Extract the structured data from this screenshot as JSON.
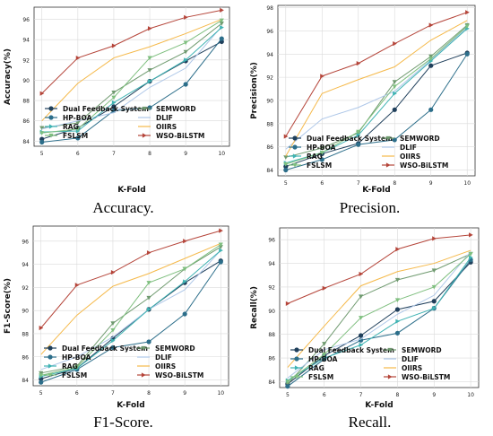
{
  "figure": {
    "captions": [
      "Accuracy.",
      "Precision.",
      "F1-Score.",
      "Recall."
    ]
  },
  "series_styles": [
    {
      "name": "Dual Feedback System",
      "color": "#1f3f5b",
      "marker": "circle"
    },
    {
      "name": "SEMWORD",
      "color": "#6f9a6f",
      "marker": "triangle-down"
    },
    {
      "name": "HP-BOA",
      "color": "#2c6e8a",
      "marker": "circle"
    },
    {
      "name": "DLIF",
      "color": "#aec7e8",
      "marker": "none"
    },
    {
      "name": "RAG",
      "color": "#3fb3b3",
      "marker": "triangle-right"
    },
    {
      "name": "OIIRS",
      "color": "#f5b94a",
      "marker": "none"
    },
    {
      "name": "FSLSM",
      "color": "#7fbf7f",
      "marker": "triangle-down"
    },
    {
      "name": "WSO-BiLSTM",
      "color": "#b5453a",
      "marker": "triangle-right"
    }
  ],
  "chart_data": [
    {
      "type": "line",
      "xlabel": "K-Fold",
      "ylabel": "Accuracy(%)",
      "x": [
        5,
        6,
        7,
        8,
        9,
        10
      ],
      "ylim": [
        83.5,
        97.2
      ],
      "yticks": [
        84,
        86,
        88,
        90,
        92,
        94,
        96
      ],
      "grid": true,
      "legend": "lower-center",
      "series": [
        {
          "name": "Dual Feedback System",
          "values": [
            84.2,
            85.3,
            87.4,
            89.9,
            91.9,
            93.8
          ]
        },
        {
          "name": "SEMWORD",
          "values": [
            85.3,
            85.8,
            88.8,
            91.0,
            92.8,
            95.6
          ]
        },
        {
          "name": "HP-BOA",
          "values": [
            83.9,
            84.3,
            87.0,
            87.3,
            89.6,
            94.1
          ]
        },
        {
          "name": "DLIF",
          "values": [
            85.2,
            86.0,
            86.8,
            89.3,
            91.2,
            95.3
          ]
        },
        {
          "name": "RAG",
          "values": [
            84.9,
            85.0,
            87.8,
            89.9,
            92.0,
            95.2
          ]
        },
        {
          "name": "OIIRS",
          "values": [
            86.0,
            89.7,
            92.2,
            93.3,
            94.6,
            96.0
          ]
        },
        {
          "name": "FSLSM",
          "values": [
            84.8,
            85.2,
            88.3,
            92.2,
            93.7,
            95.9
          ]
        },
        {
          "name": "WSO-BiLSTM",
          "values": [
            88.7,
            92.2,
            93.4,
            95.1,
            96.2,
            96.9
          ]
        }
      ]
    },
    {
      "type": "line",
      "xlabel": "K-Fold",
      "ylabel": "Precision(%)",
      "x": [
        5,
        6,
        7,
        8,
        9,
        10
      ],
      "ylim": [
        83.5,
        98.2
      ],
      "yticks": [
        84,
        86,
        88,
        90,
        92,
        94,
        96,
        98
      ],
      "grid": true,
      "legend": "lower-center",
      "series": [
        {
          "name": "Dual Feedback System",
          "values": [
            84.3,
            85.4,
            86.3,
            89.2,
            93.0,
            94.1
          ]
        },
        {
          "name": "SEMWORD",
          "values": [
            85.1,
            85.9,
            87.2,
            91.6,
            93.8,
            96.5
          ]
        },
        {
          "name": "HP-BOA",
          "values": [
            84.0,
            84.9,
            86.2,
            86.6,
            89.2,
            94.0
          ]
        },
        {
          "name": "DLIF",
          "values": [
            85.8,
            88.4,
            89.4,
            90.8,
            93.5,
            96.3
          ]
        },
        {
          "name": "RAG",
          "values": [
            84.6,
            85.5,
            87.0,
            90.6,
            93.4,
            96.2
          ]
        },
        {
          "name": "OIIRS",
          "values": [
            85.2,
            90.6,
            91.8,
            92.9,
            95.2,
            96.9
          ]
        },
        {
          "name": "FSLSM",
          "values": [
            84.5,
            85.5,
            87.3,
            91.2,
            93.6,
            96.4
          ]
        },
        {
          "name": "WSO-BiLSTM",
          "values": [
            86.9,
            92.1,
            93.2,
            94.9,
            96.5,
            97.6
          ]
        }
      ]
    },
    {
      "type": "line",
      "xlabel": "K-Fold",
      "ylabel": "F1-Score(%)",
      "x": [
        5,
        6,
        7,
        8,
        9,
        10
      ],
      "ylim": [
        83.5,
        97.3
      ],
      "yticks": [
        84,
        86,
        88,
        90,
        92,
        94,
        96
      ],
      "grid": true,
      "legend": "lower-center",
      "series": [
        {
          "name": "Dual Feedback System",
          "values": [
            84.1,
            85.0,
            87.6,
            90.1,
            92.4,
            94.3
          ]
        },
        {
          "name": "SEMWORD",
          "values": [
            84.6,
            85.2,
            88.9,
            91.1,
            93.6,
            95.5
          ]
        },
        {
          "name": "HP-BOA",
          "values": [
            83.8,
            84.9,
            86.8,
            87.3,
            89.7,
            94.2
          ]
        },
        {
          "name": "DLIF",
          "values": [
            84.9,
            86.0,
            87.7,
            90.1,
            91.8,
            95.2
          ]
        },
        {
          "name": "RAG",
          "values": [
            84.3,
            85.0,
            87.4,
            90.1,
            92.5,
            95.2
          ]
        },
        {
          "name": "OIIRS",
          "values": [
            86.2,
            89.6,
            92.1,
            93.2,
            94.5,
            95.8
          ]
        },
        {
          "name": "FSLSM",
          "values": [
            84.4,
            85.1,
            88.3,
            92.4,
            93.6,
            95.7
          ]
        },
        {
          "name": "WSO-BiLSTM",
          "values": [
            88.5,
            92.2,
            93.3,
            95.0,
            96.0,
            96.9
          ]
        }
      ]
    },
    {
      "type": "line",
      "xlabel": "K-Fold",
      "ylabel": "Recall(%)",
      "x": [
        5,
        6,
        7,
        8,
        9,
        10
      ],
      "ylim": [
        83.5,
        97.0
      ],
      "yticks": [
        84,
        86,
        88,
        90,
        92,
        94,
        96
      ],
      "grid": true,
      "legend": "lower-center",
      "series": [
        {
          "name": "Dual Feedback System",
          "values": [
            83.8,
            86.2,
            87.9,
            90.1,
            90.8,
            94.1
          ]
        },
        {
          "name": "SEMWORD",
          "values": [
            83.8,
            87.2,
            91.2,
            92.6,
            93.4,
            94.8
          ]
        },
        {
          "name": "HP-BOA",
          "values": [
            83.6,
            85.9,
            87.5,
            88.1,
            90.2,
            94.3
          ]
        },
        {
          "name": "DLIF",
          "values": [
            84.3,
            86.7,
            87.6,
            89.7,
            91.3,
            95.0
          ]
        },
        {
          "name": "RAG",
          "values": [
            84.1,
            86.0,
            87.1,
            89.1,
            90.2,
            94.5
          ]
        },
        {
          "name": "OIIRS",
          "values": [
            85.2,
            88.7,
            92.1,
            93.3,
            94.0,
            95.1
          ]
        },
        {
          "name": "FSLSM",
          "values": [
            84.0,
            86.3,
            89.4,
            90.9,
            92.0,
            94.8
          ]
        },
        {
          "name": "WSO-BiLSTM",
          "values": [
            90.6,
            91.9,
            93.1,
            95.2,
            96.1,
            96.4
          ]
        }
      ]
    }
  ]
}
